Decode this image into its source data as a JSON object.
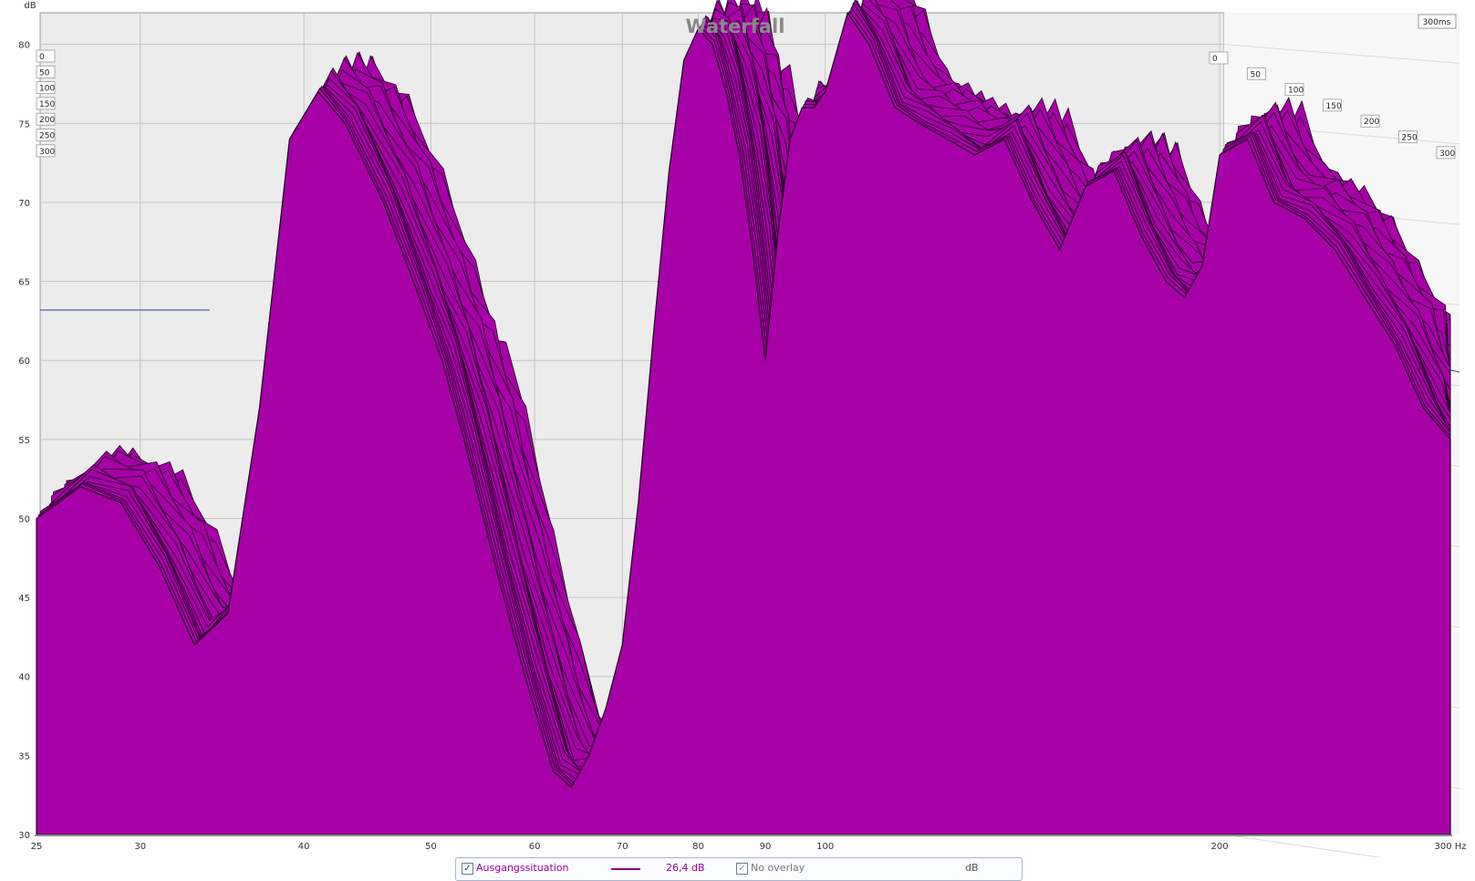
{
  "window": {
    "title": "Waterfall",
    "time_badge": "300ms"
  },
  "chart_data": {
    "type": "waterfall",
    "title": "Waterfall",
    "xlabel": "Hz",
    "ylabel": "dB",
    "x_scale": "log",
    "xlim": [
      25,
      300
    ],
    "ylim": [
      30,
      82
    ],
    "x_ticks": [
      {
        "value": 25,
        "label": "25"
      },
      {
        "value": 30,
        "label": "30"
      },
      {
        "value": 40,
        "label": "40"
      },
      {
        "value": 50,
        "label": "50"
      },
      {
        "value": 60,
        "label": "60"
      },
      {
        "value": 70,
        "label": "70"
      },
      {
        "value": 80,
        "label": "80"
      },
      {
        "value": 90,
        "label": "90"
      },
      {
        "value": 100,
        "label": "100"
      },
      {
        "value": 200,
        "label": "200"
      },
      {
        "value": 300,
        "label": "300 Hz"
      }
    ],
    "y_ticks": [
      {
        "value": 30,
        "label": "30"
      },
      {
        "value": 35,
        "label": "35"
      },
      {
        "value": 40,
        "label": "40"
      },
      {
        "value": 45,
        "label": "45"
      },
      {
        "value": 50,
        "label": "50"
      },
      {
        "value": 55,
        "label": "55"
      },
      {
        "value": 60,
        "label": "60"
      },
      {
        "value": 65,
        "label": "65"
      },
      {
        "value": 70,
        "label": "70"
      },
      {
        "value": 75,
        "label": "75"
      },
      {
        "value": 80,
        "label": "80"
      }
    ],
    "time_slices_ms": [
      "0",
      "50",
      "100",
      "150",
      "200",
      "250",
      "300"
    ],
    "grid": true,
    "fill_color": "#a800a8",
    "outline_color": "#1a001a",
    "front_slice": {
      "name": "0 ms",
      "freq": [
        25,
        27,
        29,
        31,
        33,
        35,
        37,
        39,
        41,
        43,
        46,
        49,
        51,
        53,
        56,
        59,
        62,
        64,
        66,
        68,
        70,
        72,
        74,
        76,
        78,
        80,
        82,
        84,
        86,
        88,
        90,
        92,
        94,
        96,
        98,
        100,
        104,
        108,
        113,
        118,
        124,
        130,
        137,
        144,
        151,
        158,
        166,
        174,
        182,
        188,
        194,
        200,
        210,
        220,
        232,
        245,
        258,
        272,
        286,
        300
      ],
      "db": [
        50,
        52,
        51,
        47,
        42,
        44,
        57,
        74,
        77,
        75,
        70,
        64,
        60,
        55,
        47,
        40,
        34,
        33,
        35,
        38,
        42,
        51,
        62,
        72,
        79,
        81,
        80,
        77,
        73,
        67,
        60,
        68,
        74,
        76,
        76,
        77,
        82,
        80,
        76,
        75,
        74,
        73,
        74,
        70,
        67,
        71,
        72,
        68,
        65,
        64,
        66,
        73,
        74,
        70,
        69,
        67,
        64,
        61,
        57,
        55
      ]
    }
  },
  "legend": {
    "series_checked": true,
    "series_name": "Ausgangssituation",
    "series_value": "26,4 dB",
    "overlay_checked": true,
    "overlay_label": "No overlay",
    "unit": "dB"
  }
}
